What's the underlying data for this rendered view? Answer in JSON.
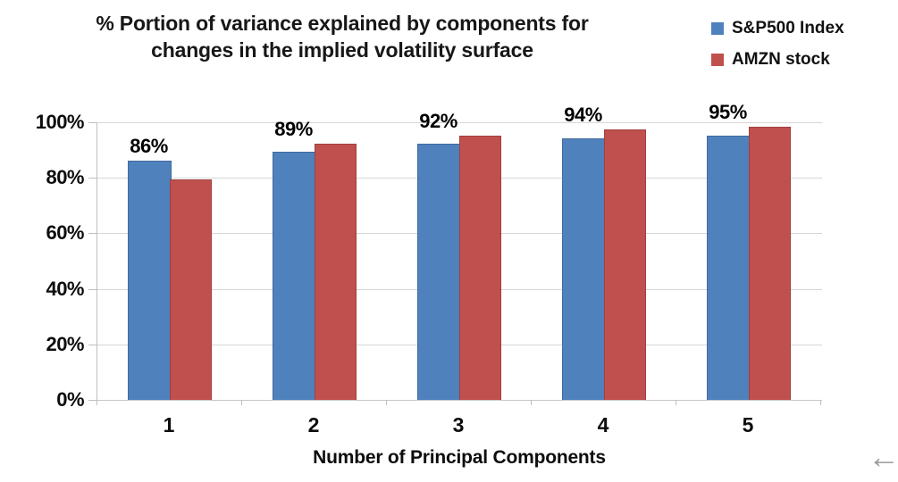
{
  "chart_data": {
    "type": "bar",
    "title_line1": "% Portion of variance explained by components for",
    "title_line2": "changes in the implied volatility surface",
    "categories": [
      "1",
      "2",
      "3",
      "4",
      "5"
    ],
    "series": [
      {
        "name": "S&P500 Index",
        "color": "#4f81bd",
        "values": [
          86,
          89,
          92,
          94,
          95
        ]
      },
      {
        "name": "AMZN stock",
        "color": "#c0504d",
        "values": [
          79,
          92,
          95,
          97,
          98
        ]
      }
    ],
    "data_labels": [
      "86%",
      "89%",
      "92%",
      "94%",
      "95%"
    ],
    "xlabel": "Number of Principal Components",
    "ylabel": "",
    "y_ticks": [
      "0%",
      "20%",
      "40%",
      "60%",
      "80%",
      "100%"
    ],
    "ylim": [
      0,
      100
    ],
    "grid": true,
    "legend_position": "top-right"
  },
  "decor": {
    "arrow_glyph": "←"
  }
}
